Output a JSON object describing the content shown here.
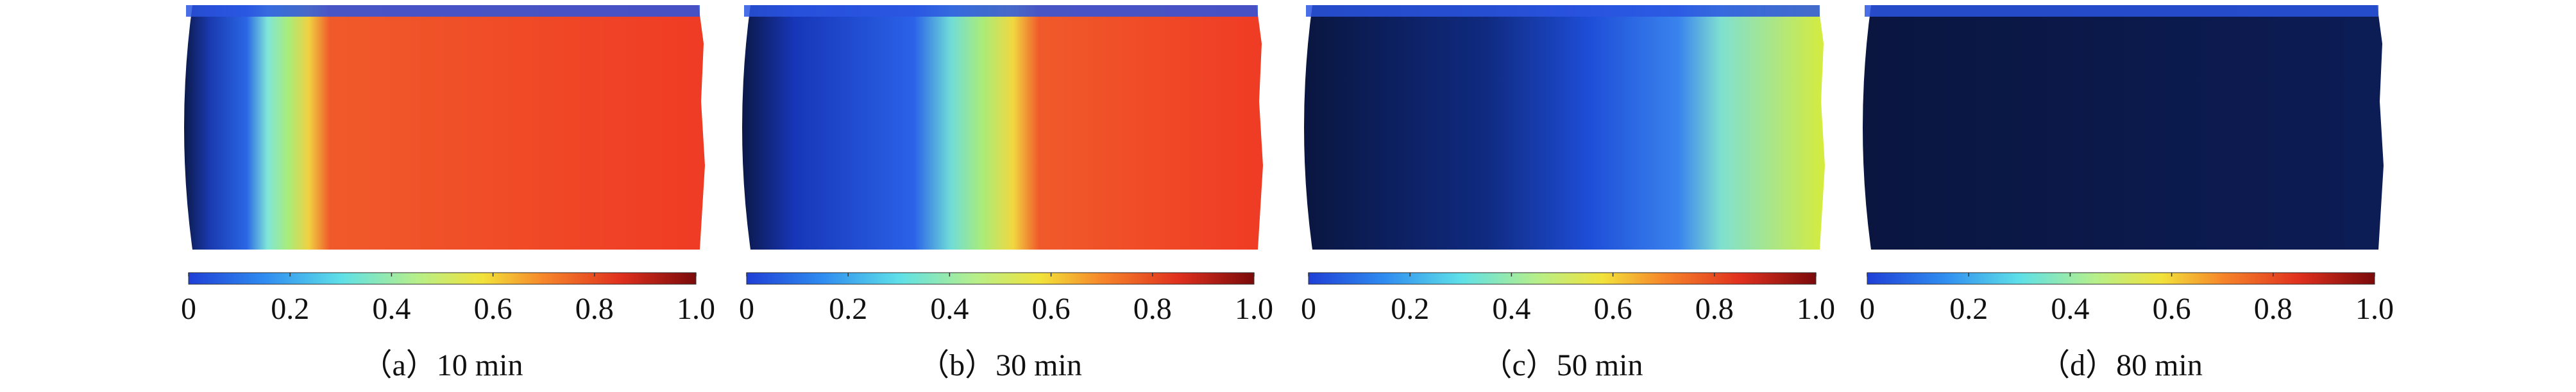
{
  "panels": [
    {
      "caption": "（a）10 min",
      "colorbar": {
        "ticks": [
          0,
          0.2,
          0.4,
          0.6,
          0.8,
          {
            "value": 1,
            "label": "1.0"
          }
        ]
      }
    },
    {
      "caption": "（b）30 min",
      "colorbar": {
        "ticks": [
          0,
          0.2,
          0.4,
          0.6,
          0.8,
          {
            "value": 1,
            "label": "1.0"
          }
        ]
      }
    },
    {
      "caption": "（c）50 min",
      "colorbar": {
        "ticks": [
          0,
          0.2,
          0.4,
          0.6,
          0.8,
          {
            "value": 1,
            "label": "1.0"
          }
        ]
      }
    },
    {
      "caption": "（d）80 min",
      "colorbar": {
        "ticks": [
          0,
          0.2,
          0.4,
          0.6,
          0.8,
          {
            "value": 1,
            "label": "1.0"
          }
        ]
      }
    }
  ]
}
